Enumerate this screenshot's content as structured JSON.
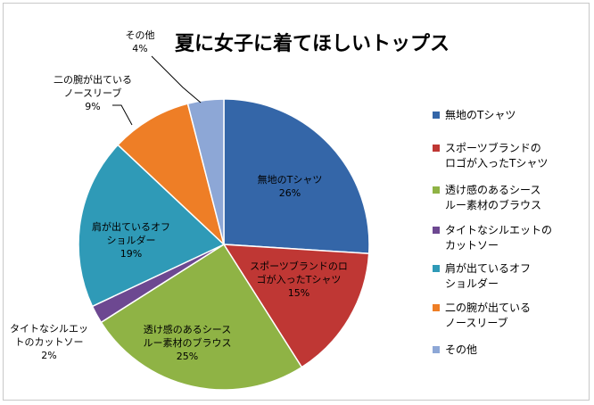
{
  "chart_data": {
    "type": "pie",
    "title": "夏に女子に着てほしいトップス",
    "legend_position": "right",
    "slices": [
      {
        "label": [
          "無地のTシャツ"
        ],
        "legend": [
          "無地のTシャツ"
        ],
        "value": 26,
        "value_label": "26%",
        "color": "#3466A8"
      },
      {
        "label": [
          "スポーツブランドのロ",
          "ゴが入ったTシャツ"
        ],
        "legend": [
          "スポーツブランドの",
          "ロゴが入ったTシャツ"
        ],
        "value": 15,
        "value_label": "15%",
        "color": "#BF3734"
      },
      {
        "label": [
          "透け感のあるシース",
          "ルー素材のブラウス"
        ],
        "legend": [
          "透け感のあるシース",
          "ルー素材のブラウス"
        ],
        "value": 25,
        "value_label": "25%",
        "color": "#8FB345"
      },
      {
        "label": [
          "タイトなシルエッ",
          "トのカットソー"
        ],
        "legend": [
          "タイトなシルエットの",
          "カットソー"
        ],
        "value": 2,
        "value_label": "2%",
        "color": "#6D4891"
      },
      {
        "label": [
          "肩が出ているオフ",
          "ショルダー"
        ],
        "legend": [
          "肩が出ているオフ",
          "ショルダー"
        ],
        "value": 19,
        "value_label": "19%",
        "color": "#2F9AB7"
      },
      {
        "label": [
          "二の腕が出ている",
          "ノースリーブ"
        ],
        "legend": [
          "二の腕が出ている",
          "ノースリーブ"
        ],
        "value": 9,
        "value_label": "9%",
        "color": "#EE7E26"
      },
      {
        "label": [
          "その他"
        ],
        "legend": [
          "その他"
        ],
        "value": 4,
        "value_label": "4%",
        "color": "#8DA7D6"
      }
    ]
  }
}
